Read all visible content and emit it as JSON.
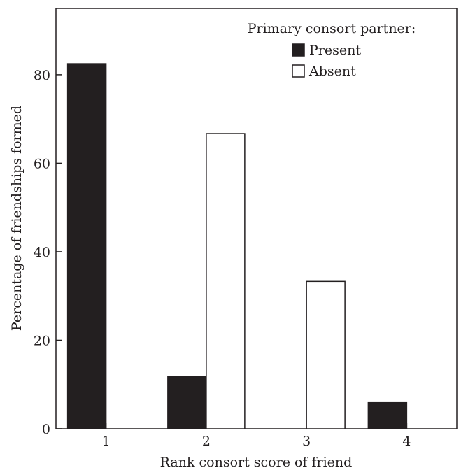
{
  "chart_data": {
    "type": "bar",
    "categories": [
      "1",
      "2",
      "3",
      "4"
    ],
    "series": [
      {
        "name": "Present",
        "values": [
          82.5,
          11.8,
          0,
          5.9
        ],
        "color": "#231f20"
      },
      {
        "name": "Absent",
        "values": [
          0,
          66.7,
          33.3,
          0
        ],
        "color": "#ffffff"
      }
    ],
    "title": "",
    "xlabel": "Rank consort score of friend",
    "ylabel": "Percentage of friendships formed",
    "ylim": [
      0,
      95
    ],
    "yticks": [
      0,
      20,
      40,
      60,
      80
    ],
    "legend": {
      "title": "Primary consort partner:",
      "placement": "top-right"
    },
    "grid": false
  }
}
